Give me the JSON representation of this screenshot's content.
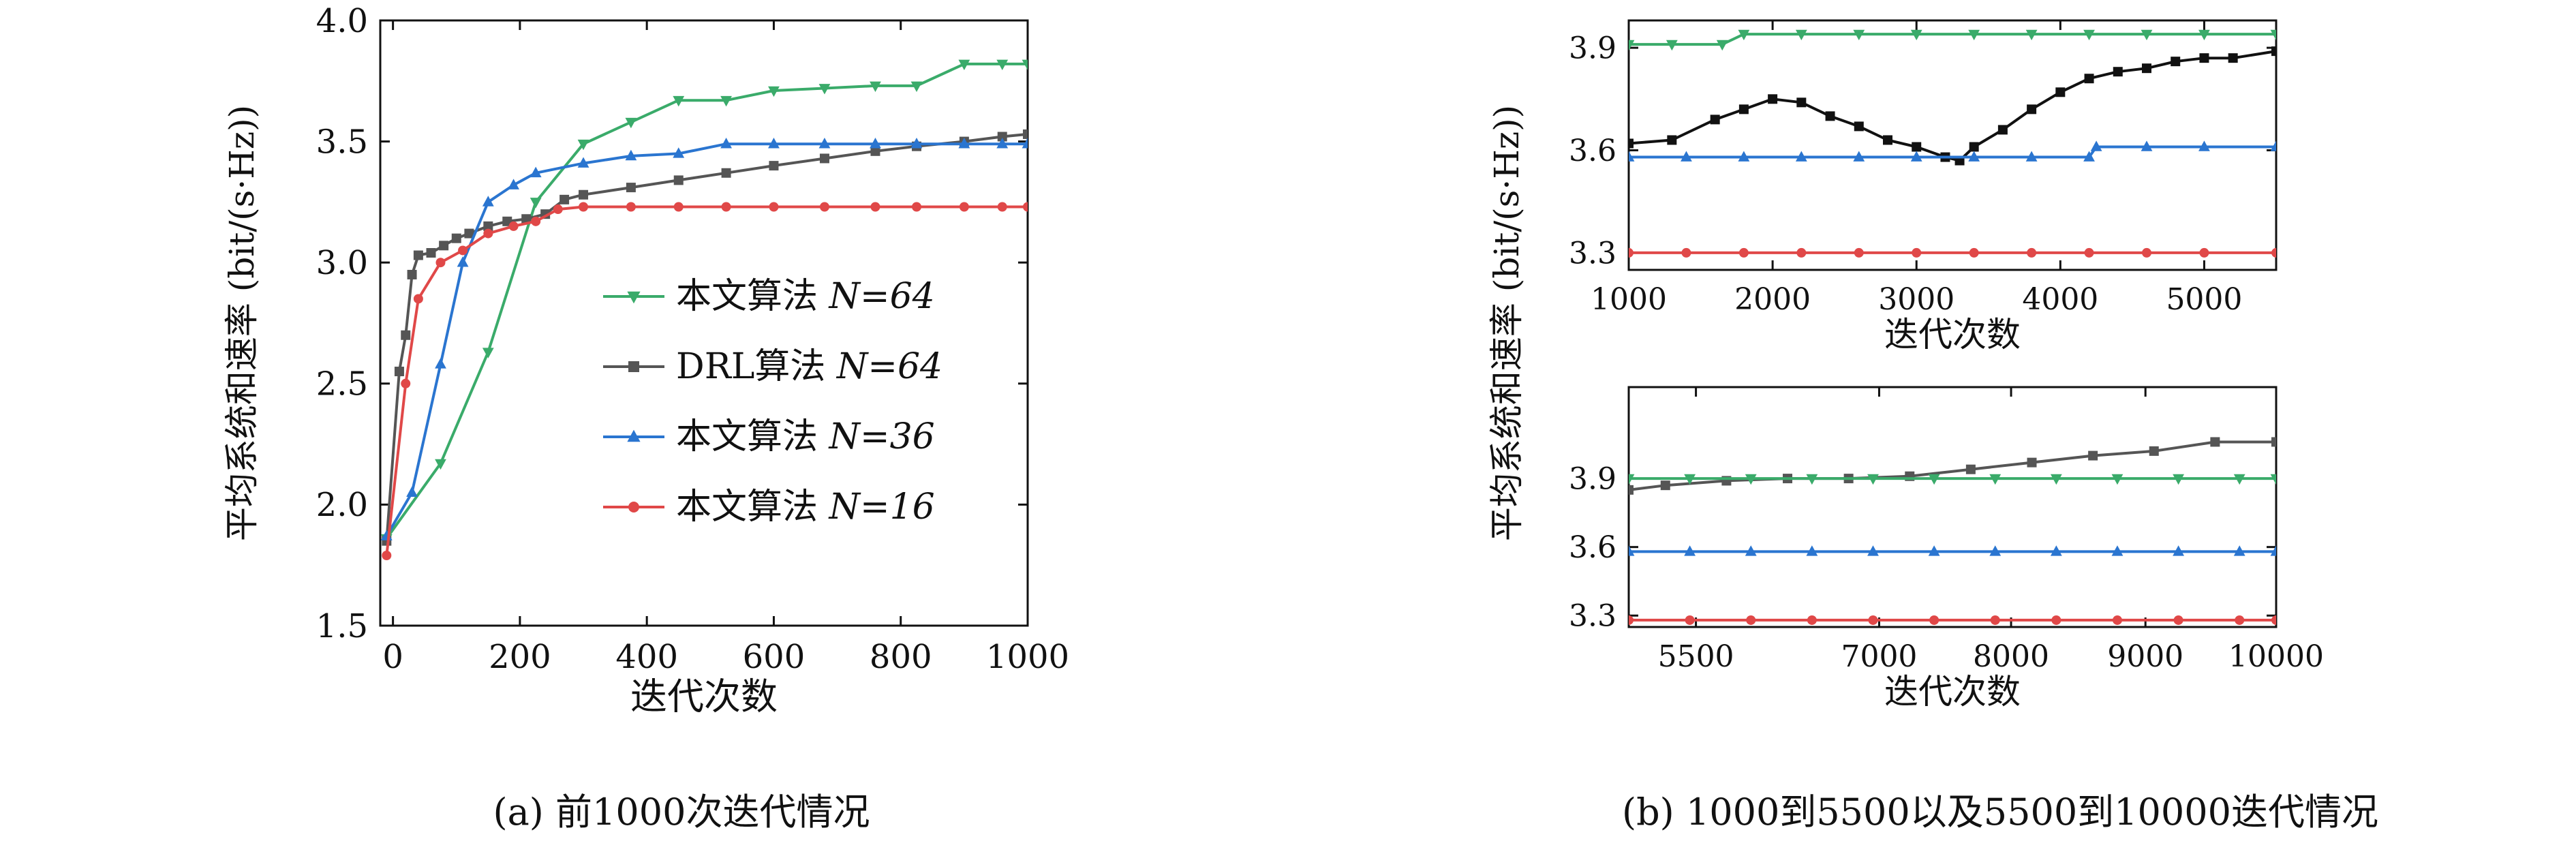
{
  "chart_data": [
    {
      "type": "line",
      "panel": "a",
      "caption": "(a) 前1000次迭代情况",
      "xlabel": "迭代次数",
      "ylabel": "平均系统和速率 (bit/(s·Hz))",
      "xlim": [
        -20,
        1000
      ],
      "ylim": [
        1.5,
        4.0
      ],
      "xticks": [
        0,
        200,
        400,
        600,
        800,
        1000
      ],
      "yticks": [
        1.5,
        2.0,
        2.5,
        3.0,
        3.5,
        4.0
      ],
      "ytick_labels": [
        "1.5",
        "2.0",
        "2.5",
        "3.0",
        "3.5",
        "4.0"
      ],
      "legend_position": "lower-right",
      "series": [
        {
          "name": "本文算法",
          "n_label": "N=64",
          "color": "#3aab6a",
          "marker": "triangle-down",
          "x": [
            -10,
            75,
            150,
            225,
            300,
            375,
            450,
            525,
            600,
            680,
            760,
            825,
            900,
            960,
            1000
          ],
          "y": [
            1.86,
            2.17,
            2.63,
            3.25,
            3.49,
            3.58,
            3.67,
            3.67,
            3.71,
            3.72,
            3.73,
            3.73,
            3.82,
            3.82,
            3.82
          ]
        },
        {
          "name": "DRL算法",
          "n_label": "N=64",
          "color": "#555555",
          "marker": "square",
          "x": [
            -10,
            10,
            20,
            30,
            40,
            60,
            80,
            100,
            120,
            150,
            180,
            210,
            240,
            270,
            300,
            375,
            450,
            525,
            600,
            680,
            760,
            825,
            900,
            960,
            1000
          ],
          "y": [
            1.85,
            2.55,
            2.7,
            2.95,
            3.03,
            3.04,
            3.07,
            3.1,
            3.12,
            3.15,
            3.17,
            3.18,
            3.2,
            3.26,
            3.28,
            3.31,
            3.34,
            3.37,
            3.4,
            3.43,
            3.46,
            3.48,
            3.5,
            3.52,
            3.53
          ]
        },
        {
          "name": "本文算法",
          "n_label": "N=36",
          "color": "#2a75d0",
          "marker": "triangle-up",
          "x": [
            -10,
            30,
            75,
            110,
            150,
            190,
            225,
            300,
            375,
            450,
            525,
            600,
            680,
            760,
            825,
            900,
            960,
            1000
          ],
          "y": [
            1.87,
            2.05,
            2.58,
            3.0,
            3.25,
            3.32,
            3.37,
            3.41,
            3.44,
            3.45,
            3.49,
            3.49,
            3.49,
            3.49,
            3.49,
            3.49,
            3.49,
            3.49
          ]
        },
        {
          "name": "本文算法",
          "n_label": "N=16",
          "color": "#e04848",
          "marker": "circle",
          "x": [
            -10,
            20,
            40,
            75,
            110,
            150,
            190,
            225,
            260,
            300,
            375,
            450,
            525,
            600,
            680,
            760,
            825,
            900,
            960,
            1000
          ],
          "y": [
            1.79,
            2.5,
            2.85,
            3.0,
            3.05,
            3.12,
            3.15,
            3.17,
            3.22,
            3.23,
            3.23,
            3.23,
            3.23,
            3.23,
            3.23,
            3.23,
            3.23,
            3.23,
            3.23,
            3.23
          ]
        }
      ]
    },
    {
      "type": "line",
      "panel": "b-top",
      "xlabel": "迭代次数",
      "xlim": [
        1000,
        5500
      ],
      "ylim": [
        3.25,
        3.98
      ],
      "xticks": [
        1000,
        2000,
        3000,
        4000,
        5000
      ],
      "yticks": [
        3.3,
        3.6,
        3.9
      ],
      "ytick_labels": [
        "3.3",
        "3.6",
        "3.9"
      ],
      "series": [
        {
          "color": "#3aab6a",
          "marker": "triangle-down",
          "x": [
            1000,
            1300,
            1650,
            1800,
            2200,
            2600,
            3000,
            3400,
            3800,
            4200,
            4600,
            5000,
            5500
          ],
          "y": [
            3.91,
            3.91,
            3.91,
            3.94,
            3.94,
            3.94,
            3.94,
            3.94,
            3.94,
            3.94,
            3.94,
            3.94,
            3.94
          ]
        },
        {
          "color": "#111111",
          "marker": "square",
          "x": [
            1000,
            1300,
            1600,
            1800,
            2000,
            2200,
            2400,
            2600,
            2800,
            3000,
            3200,
            3300,
            3400,
            3600,
            3800,
            4000,
            4200,
            4400,
            4600,
            4800,
            5000,
            5200,
            5500
          ],
          "y": [
            3.62,
            3.63,
            3.69,
            3.72,
            3.75,
            3.74,
            3.7,
            3.67,
            3.63,
            3.61,
            3.58,
            3.57,
            3.61,
            3.66,
            3.72,
            3.77,
            3.81,
            3.83,
            3.84,
            3.86,
            3.87,
            3.87,
            3.89
          ]
        },
        {
          "color": "#2a75d0",
          "marker": "triangle-up",
          "x": [
            1000,
            1400,
            1800,
            2200,
            2600,
            3000,
            3400,
            3800,
            4200,
            4250,
            4600,
            5000,
            5500
          ],
          "y": [
            3.58,
            3.58,
            3.58,
            3.58,
            3.58,
            3.58,
            3.58,
            3.58,
            3.58,
            3.61,
            3.61,
            3.61,
            3.61
          ]
        },
        {
          "color": "#e04848",
          "marker": "circle",
          "x": [
            1000,
            1400,
            1800,
            2200,
            2600,
            3000,
            3400,
            3800,
            4200,
            4600,
            5000,
            5500
          ],
          "y": [
            3.3,
            3.3,
            3.3,
            3.3,
            3.3,
            3.3,
            3.3,
            3.3,
            3.3,
            3.3,
            3.3,
            3.3
          ]
        }
      ]
    },
    {
      "type": "line",
      "panel": "b-bottom",
      "caption": "(b) 1000到5500以及5500到10000迭代情况",
      "xlabel": "迭代次数",
      "ylabel": "平均系统和速率 (bit/(s·Hz))",
      "xlim": [
        4700,
        10000
      ],
      "ylim": [
        3.25,
        4.3
      ],
      "xticks": [
        5500,
        7000,
        8000,
        9000,
        10000
      ],
      "xtick_positions": [
        5250,
        6750,
        7830,
        8930,
        10000
      ],
      "yticks": [
        3.3,
        3.6,
        3.9
      ],
      "ytick_labels": [
        "3.3",
        "3.6",
        "3.9"
      ],
      "series": [
        {
          "color": "#555555",
          "marker": "square",
          "x": [
            4700,
            5000,
            5500,
            6000,
            6500,
            7000,
            7500,
            8000,
            8500,
            9000,
            9500,
            10000
          ],
          "y": [
            3.85,
            3.87,
            3.89,
            3.9,
            3.9,
            3.91,
            3.94,
            3.97,
            4.0,
            4.02,
            4.06,
            4.06
          ]
        },
        {
          "color": "#3aab6a",
          "marker": "triangle-down",
          "x": [
            4700,
            5200,
            5700,
            6200,
            6700,
            7200,
            7700,
            8200,
            8700,
            9200,
            9700,
            10000
          ],
          "y": [
            3.9,
            3.9,
            3.9,
            3.9,
            3.9,
            3.9,
            3.9,
            3.9,
            3.9,
            3.9,
            3.9,
            3.9
          ]
        },
        {
          "color": "#2a75d0",
          "marker": "triangle-up",
          "x": [
            4700,
            5200,
            5700,
            6200,
            6700,
            7200,
            7700,
            8200,
            8700,
            9200,
            9700,
            10000
          ],
          "y": [
            3.58,
            3.58,
            3.58,
            3.58,
            3.58,
            3.58,
            3.58,
            3.58,
            3.58,
            3.58,
            3.58,
            3.58
          ]
        },
        {
          "color": "#e04848",
          "marker": "circle",
          "x": [
            4700,
            5200,
            5700,
            6200,
            6700,
            7200,
            7700,
            8200,
            8700,
            9200,
            9700,
            10000
          ],
          "y": [
            3.28,
            3.28,
            3.28,
            3.28,
            3.28,
            3.28,
            3.28,
            3.28,
            3.28,
            3.28,
            3.28,
            3.28
          ]
        }
      ]
    }
  ]
}
